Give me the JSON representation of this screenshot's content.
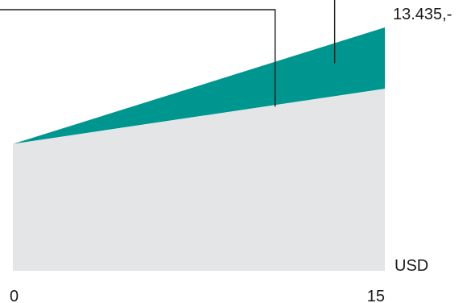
{
  "chart_data": {
    "type": "area",
    "x": [
      0,
      15
    ],
    "xlim": [
      0,
      15
    ],
    "x_ticks": [
      "0",
      "15"
    ],
    "y_unit_label": "USD",
    "end_value_label": "13.435,-",
    "series": [
      {
        "values": [
          7000,
          10050
        ],
        "color": "#e4e5e7"
      },
      {
        "values": [
          7000,
          13435
        ],
        "color": "#009690"
      }
    ],
    "ylim": [
      0,
      13435
    ],
    "grid": false,
    "legend": "none",
    "callout_lines": 2
  }
}
